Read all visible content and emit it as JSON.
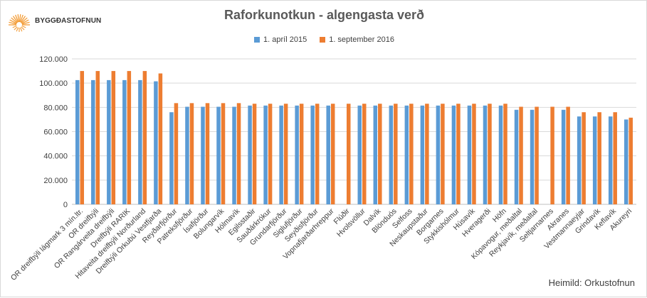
{
  "brand": {
    "name": "BYGGÐASTOFNUN",
    "sun_color": "#f39c36"
  },
  "source_label": "Heimild: Orkustofnun",
  "colors": {
    "series1": "#5b9bd5",
    "series2": "#ed7d31",
    "grid": "#d9d9d9",
    "axis_text": "#404040"
  },
  "chart_data": {
    "type": "bar",
    "title": "Raforkunotkun - algengasta verð",
    "legend_position": "top",
    "grid": true,
    "ylim": [
      0,
      120000
    ],
    "yticks": [
      "0",
      "20.000",
      "40.000",
      "60.000",
      "80.000",
      "100.000",
      "120.000"
    ],
    "categories": [
      "OR dreifbýli lágmark 3 mín.ltr.",
      "OR dreifbýli",
      "OR Rangárveita dreifbýli",
      "Dreifbýli RARIK",
      "Hitaveita dreifbýli Norðurland",
      "Dreifbýli Orkubú Vestfjarða",
      "Reyðarfjörður",
      "Patreksfjörður",
      "Ísafjörður",
      "Bolungarvík",
      "Hólmavík",
      "Egilsstaðir",
      "Sauðárkrókur",
      "Grundarfjörður",
      "Siglufjörður",
      "Seyðisfjörður",
      "Vopnafjarðarhreppur",
      "Flúðir",
      "Hvolsvöllur",
      "Dalvík",
      "Blönduós",
      "Selfoss",
      "Neskaupstaður",
      "Borgarnes",
      "Stykkishólmur",
      "Húsavík",
      "Hveragerði",
      "Höfn",
      "Kópavogur, meðaltal",
      "Reykjavík, meðaltal",
      "Seltjarnarnes",
      "Akranes",
      "Vestmannaeyjar",
      "Grindavík",
      "Keflavík",
      "Akureyri"
    ],
    "series": [
      {
        "name": "1. apríl 2015",
        "values": [
          102500,
          102500,
          102500,
          102500,
          102500,
          101500,
          76000,
          80500,
          80500,
          80500,
          80500,
          81500,
          81500,
          81500,
          81500,
          81500,
          81500,
          null,
          81500,
          81500,
          81500,
          81500,
          81500,
          81500,
          81500,
          81500,
          81500,
          81500,
          78000,
          78000,
          null,
          78000,
          72500,
          72500,
          72500,
          70000
        ]
      },
      {
        "name": "1. september 2016",
        "values": [
          110000,
          110000,
          110000,
          110000,
          110000,
          108000,
          83500,
          83500,
          83500,
          83500,
          83500,
          83000,
          83000,
          83000,
          83000,
          83000,
          83000,
          83000,
          83000,
          83000,
          83000,
          83000,
          83000,
          83000,
          83000,
          83000,
          83000,
          83000,
          80500,
          80500,
          80500,
          80500,
          76000,
          76000,
          76000,
          71500
        ]
      }
    ]
  }
}
